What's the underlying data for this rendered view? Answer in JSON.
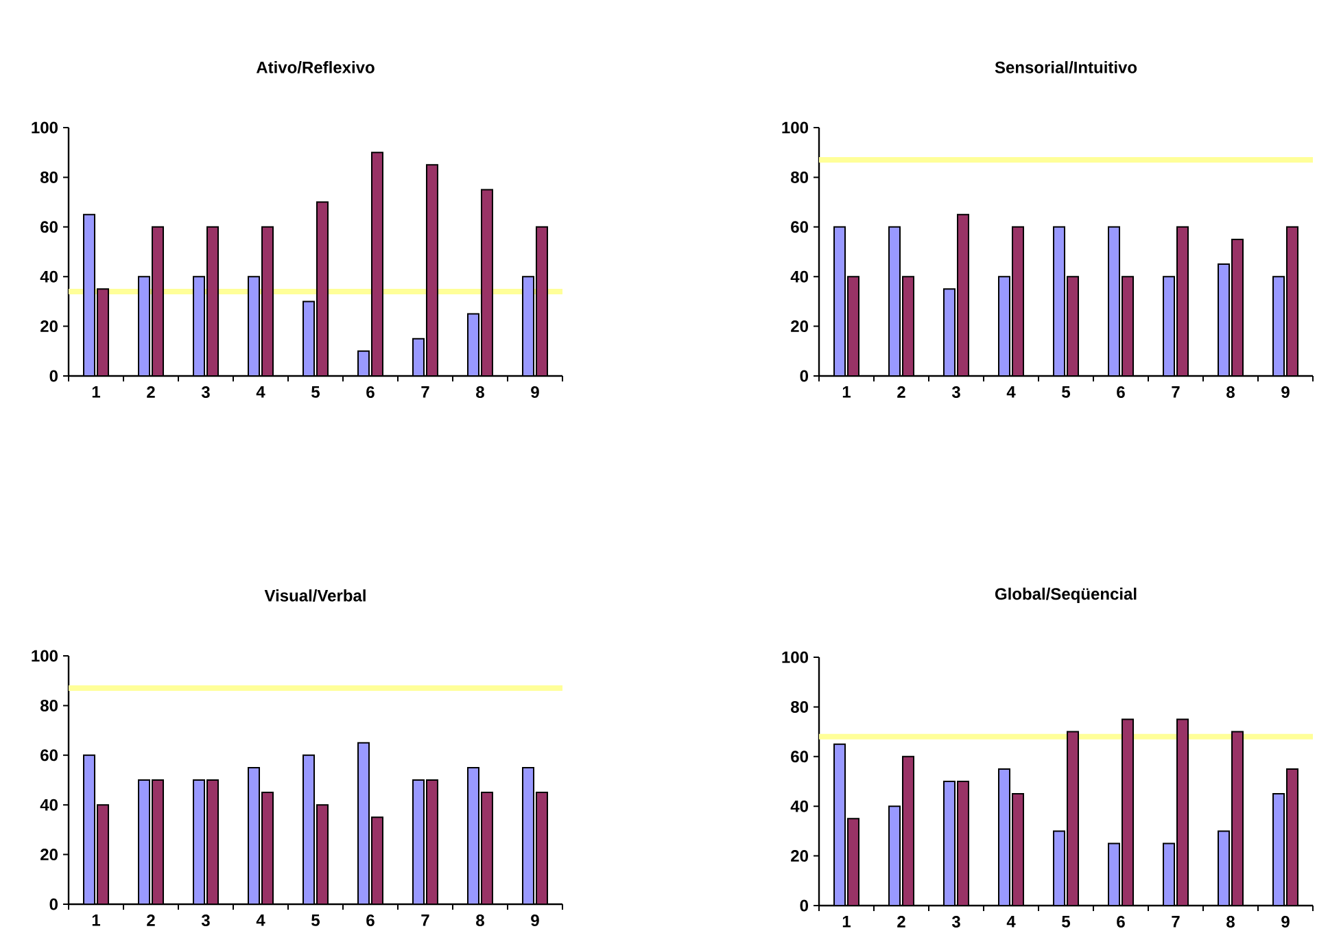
{
  "chart_data": [
    {
      "type": "bar",
      "title": "Ativo/Reflexivo",
      "categories": [
        "1",
        "2",
        "3",
        "4",
        "5",
        "6",
        "7",
        "8",
        "9"
      ],
      "series": [
        {
          "color": "#9999ff",
          "values": [
            65,
            40,
            40,
            40,
            30,
            10,
            15,
            25,
            40
          ]
        },
        {
          "color": "#993366",
          "values": [
            35,
            60,
            60,
            60,
            70,
            90,
            85,
            75,
            60
          ]
        }
      ],
      "ylim": [
        0,
        100
      ],
      "yticks": [
        0,
        20,
        40,
        60,
        80,
        100
      ],
      "ref_lines": [
        {
          "axis": "y",
          "value": 34,
          "color": "#ffff99"
        }
      ]
    },
    {
      "type": "bar",
      "title": "Sensorial/Intuitivo",
      "categories": [
        "1",
        "2",
        "3",
        "4",
        "5",
        "6",
        "7",
        "8",
        "9"
      ],
      "series": [
        {
          "color": "#9999ff",
          "values": [
            60,
            60,
            35,
            40,
            60,
            60,
            40,
            45,
            40
          ]
        },
        {
          "color": "#993366",
          "values": [
            40,
            40,
            65,
            60,
            40,
            40,
            60,
            55,
            60
          ]
        }
      ],
      "ylim": [
        0,
        100
      ],
      "yticks": [
        0,
        20,
        40,
        60,
        80,
        100
      ],
      "ref_lines": [
        {
          "axis": "y",
          "value": 87,
          "color": "#ffff99"
        }
      ]
    },
    {
      "type": "bar",
      "title": "Visual/Verbal",
      "categories": [
        "1",
        "2",
        "3",
        "4",
        "5",
        "6",
        "7",
        "8",
        "9"
      ],
      "series": [
        {
          "color": "#9999ff",
          "values": [
            60,
            50,
            50,
            55,
            60,
            65,
            50,
            55,
            55
          ]
        },
        {
          "color": "#993366",
          "values": [
            40,
            50,
            50,
            45,
            40,
            35,
            50,
            45,
            45
          ]
        }
      ],
      "ylim": [
        0,
        100
      ],
      "yticks": [
        0,
        20,
        40,
        60,
        80,
        100
      ],
      "ref_lines": [
        {
          "axis": "y",
          "value": 87,
          "color": "#ffff99"
        }
      ]
    },
    {
      "type": "bar",
      "title": "Global/Seqüencial",
      "categories": [
        "1",
        "2",
        "3",
        "4",
        "5",
        "6",
        "7",
        "8",
        "9"
      ],
      "series": [
        {
          "color": "#9999ff",
          "values": [
            65,
            40,
            50,
            55,
            30,
            25,
            25,
            30,
            45
          ]
        },
        {
          "color": "#993366",
          "values": [
            35,
            60,
            50,
            45,
            70,
            75,
            75,
            70,
            55
          ]
        }
      ],
      "ylim": [
        0,
        100
      ],
      "yticks": [
        0,
        20,
        40,
        60,
        80,
        100
      ],
      "ref_lines": [
        {
          "axis": "y",
          "value": 68,
          "color": "#ffff99"
        }
      ]
    }
  ]
}
